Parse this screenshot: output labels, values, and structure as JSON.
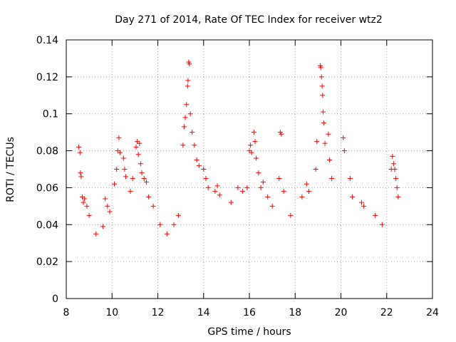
{
  "chart_data": {
    "type": "scatter",
    "title": "Day 271 of 2014, Rate Of TEC Index for receiver wtz2",
    "xlabel": "GPS time / hours",
    "ylabel": "ROTI / TECUs",
    "xlim": [
      8,
      24
    ],
    "ylim": [
      0,
      0.14
    ],
    "x_ticks": [
      8,
      10,
      12,
      14,
      16,
      18,
      20,
      22,
      24
    ],
    "x_tick_labels": [
      "8",
      "10",
      "12",
      "14",
      "16",
      "18",
      "20",
      "22",
      "24"
    ],
    "y_ticks": [
      0,
      0.02,
      0.04,
      0.06,
      0.08,
      0.1,
      0.12,
      0.14
    ],
    "y_tick_labels": [
      "0",
      "0.02",
      "0.04",
      "0.06",
      "0.08",
      "0.1",
      "0.12",
      "0.14"
    ],
    "grid": true,
    "marker": "+",
    "color": "#ff0000",
    "series": [
      {
        "name": "ROTI",
        "points": [
          [
            8.55,
            0.082
          ],
          [
            8.6,
            0.079
          ],
          [
            8.62,
            0.068
          ],
          [
            8.65,
            0.066
          ],
          [
            8.7,
            0.055
          ],
          [
            8.75,
            0.052
          ],
          [
            8.8,
            0.054
          ],
          [
            8.9,
            0.05
          ],
          [
            9.0,
            0.045
          ],
          [
            9.3,
            0.035
          ],
          [
            9.6,
            0.039
          ],
          [
            9.7,
            0.054
          ],
          [
            9.8,
            0.05
          ],
          [
            9.9,
            0.047
          ],
          [
            10.1,
            0.062
          ],
          [
            10.2,
            0.07
          ],
          [
            10.25,
            0.08
          ],
          [
            10.3,
            0.087
          ],
          [
            10.35,
            0.079
          ],
          [
            10.5,
            0.076
          ],
          [
            10.55,
            0.07
          ],
          [
            10.6,
            0.066
          ],
          [
            10.8,
            0.058
          ],
          [
            10.9,
            0.065
          ],
          [
            11.05,
            0.082
          ],
          [
            11.1,
            0.085
          ],
          [
            11.15,
            0.078
          ],
          [
            11.2,
            0.084
          ],
          [
            11.25,
            0.073
          ],
          [
            11.3,
            0.068
          ],
          [
            11.4,
            0.065
          ],
          [
            11.5,
            0.063
          ],
          [
            11.6,
            0.055
          ],
          [
            11.8,
            0.05
          ],
          [
            12.1,
            0.04
          ],
          [
            12.4,
            0.035
          ],
          [
            12.7,
            0.04
          ],
          [
            12.9,
            0.045
          ],
          [
            13.1,
            0.083
          ],
          [
            13.15,
            0.093
          ],
          [
            13.2,
            0.098
          ],
          [
            13.25,
            0.105
          ],
          [
            13.3,
            0.115
          ],
          [
            13.32,
            0.118
          ],
          [
            13.35,
            0.128
          ],
          [
            13.38,
            0.127
          ],
          [
            13.42,
            0.1
          ],
          [
            13.5,
            0.09
          ],
          [
            13.6,
            0.083
          ],
          [
            13.7,
            0.075
          ],
          [
            13.8,
            0.072
          ],
          [
            14.0,
            0.07
          ],
          [
            14.1,
            0.065
          ],
          [
            14.2,
            0.06
          ],
          [
            14.5,
            0.058
          ],
          [
            14.6,
            0.061
          ],
          [
            14.7,
            0.056
          ],
          [
            15.2,
            0.052
          ],
          [
            15.5,
            0.06
          ],
          [
            15.7,
            0.058
          ],
          [
            15.9,
            0.06
          ],
          [
            16.0,
            0.08
          ],
          [
            16.05,
            0.083
          ],
          [
            16.1,
            0.079
          ],
          [
            16.2,
            0.09
          ],
          [
            16.25,
            0.085
          ],
          [
            16.3,
            0.076
          ],
          [
            16.4,
            0.068
          ],
          [
            16.5,
            0.06
          ],
          [
            16.6,
            0.063
          ],
          [
            16.8,
            0.055
          ],
          [
            17.0,
            0.05
          ],
          [
            17.35,
            0.09
          ],
          [
            17.4,
            0.089
          ],
          [
            17.3,
            0.065
          ],
          [
            17.5,
            0.058
          ],
          [
            17.8,
            0.045
          ],
          [
            18.3,
            0.055
          ],
          [
            18.5,
            0.062
          ],
          [
            18.6,
            0.058
          ],
          [
            18.9,
            0.07
          ],
          [
            18.95,
            0.085
          ],
          [
            19.1,
            0.126
          ],
          [
            19.12,
            0.125
          ],
          [
            19.15,
            0.12
          ],
          [
            19.18,
            0.115
          ],
          [
            19.2,
            0.11
          ],
          [
            19.22,
            0.101
          ],
          [
            19.25,
            0.095
          ],
          [
            19.3,
            0.084
          ],
          [
            19.45,
            0.089
          ],
          [
            19.5,
            0.075
          ],
          [
            19.6,
            0.065
          ],
          [
            20.1,
            0.087
          ],
          [
            20.15,
            0.08
          ],
          [
            20.4,
            0.065
          ],
          [
            20.5,
            0.055
          ],
          [
            20.9,
            0.052
          ],
          [
            21.0,
            0.05
          ],
          [
            21.5,
            0.045
          ],
          [
            21.8,
            0.04
          ],
          [
            22.2,
            0.07
          ],
          [
            22.25,
            0.077
          ],
          [
            22.3,
            0.073
          ],
          [
            22.35,
            0.07
          ],
          [
            22.4,
            0.065
          ],
          [
            22.45,
            0.06
          ],
          [
            22.5,
            0.055
          ]
        ]
      }
    ]
  }
}
